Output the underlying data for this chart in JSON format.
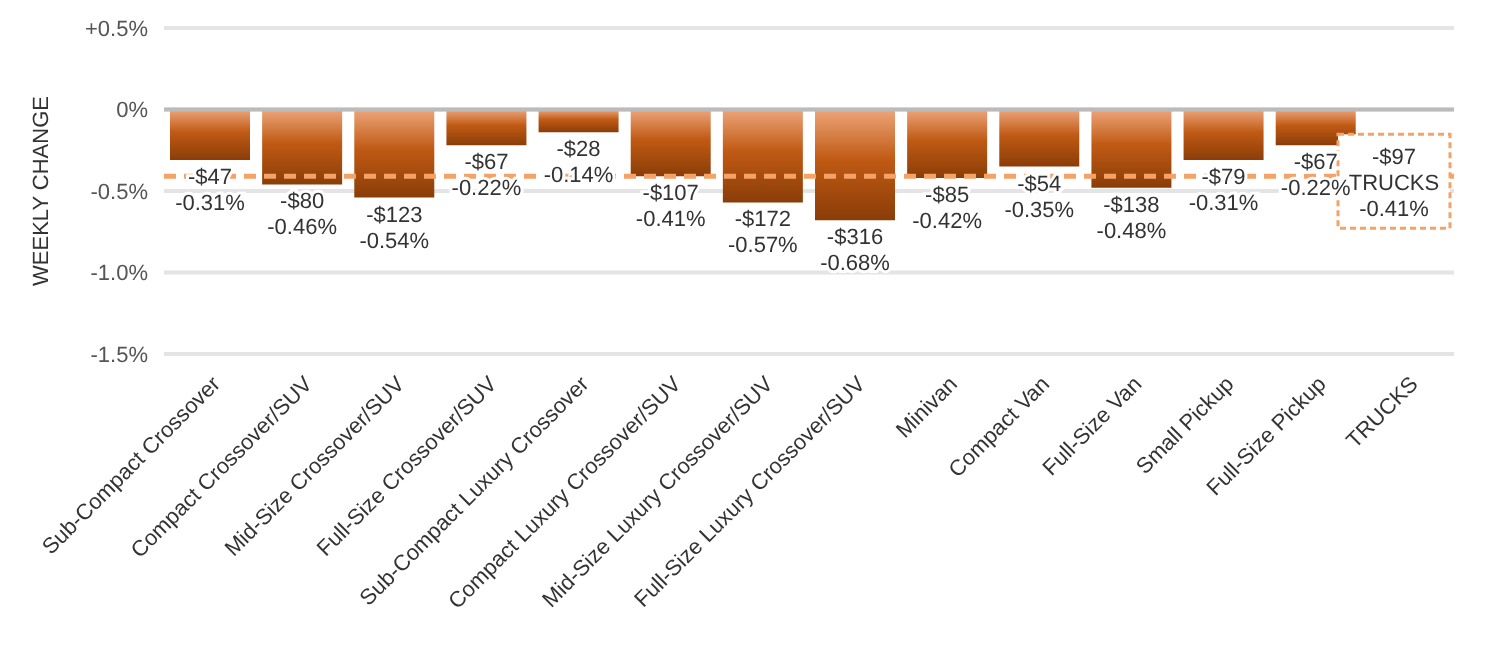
{
  "chart_data": {
    "type": "bar",
    "ylabel": "WEEKLY CHANGE",
    "categories": [
      "Sub-Compact Crossover",
      "Compact Crossover/SUV",
      "Mid-Size Crossover/SUV",
      "Full-Size Crossover/SUV",
      "Sub-Compact Luxury Crossover",
      "Compact Luxury Crossover/SUV",
      "Mid-Size Luxury Crossover/SUV",
      "Full-Size Luxury Crossover/SUV",
      "Minivan",
      "Compact Van",
      "Full-Size Van",
      "Small Pickup",
      "Full-Size Pickup",
      "TRUCKS"
    ],
    "values": [
      -0.31,
      -0.46,
      -0.54,
      -0.22,
      -0.14,
      -0.41,
      -0.57,
      -0.68,
      -0.42,
      -0.35,
      -0.48,
      -0.31,
      -0.22,
      null
    ],
    "value_labels": [
      "-$47\n-0.31%",
      "-$80\n-0.46%",
      "-$123\n-0.54%",
      "-$67\n-0.22%",
      "-$28\n-0.14%",
      "-$107\n-0.41%",
      "-$172\n-0.57%",
      "-$316\n-0.68%",
      "-$85\n-0.42%",
      "-$54\n-0.35%",
      "-$138\n-0.48%",
      "-$79\n-0.31%",
      "-$67\n-0.22%",
      null
    ],
    "color": "#c05a14",
    "ylim": [
      -1.5,
      0.5
    ],
    "yticks": [
      {
        "value": 0.5,
        "label": "+0.5%"
      },
      {
        "value": 0,
        "label": "0%"
      },
      {
        "value": -0.5,
        "label": "-0.5%"
      },
      {
        "value": -1,
        "label": "-1.0%"
      },
      {
        "value": -1.5,
        "label": "-1.5%"
      }
    ],
    "grid": "y",
    "ref_lines": [
      {
        "axis": "y",
        "value": -0.41,
        "label": "-$97\nTRUCKS\n-0.41%",
        "color": "#f4a266",
        "line_style": "dashed"
      }
    ]
  }
}
